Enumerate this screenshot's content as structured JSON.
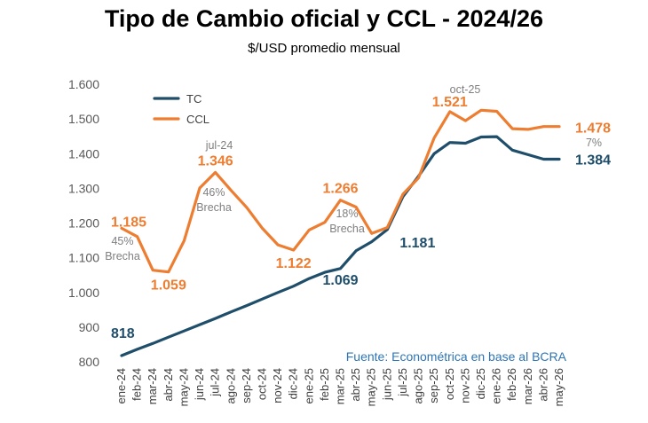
{
  "chart_data": {
    "type": "line",
    "title": "Tipo de Cambio oficial y CCL - 2024/26",
    "subtitle": "$/USD promedio mensual",
    "categories": [
      "ene-24",
      "feb-24",
      "mar-24",
      "abr-24",
      "may-24",
      "jun-24",
      "jul-24",
      "ago-24",
      "sep-24",
      "oct-24",
      "nov-24",
      "dic-24",
      "ene-25",
      "feb-25",
      "mar-25",
      "abr-25",
      "may-25",
      "jun-25",
      "jul-25",
      "ago-25",
      "sep-25",
      "oct-25",
      "nov-25",
      "dic-25",
      "ene-26",
      "feb-26",
      "mar-26",
      "abr-26",
      "may-26"
    ],
    "ylim": [
      800,
      1600
    ],
    "yticks": [
      "800",
      "900",
      "1.000",
      "1.100",
      "1.200",
      "1.300",
      "1.400",
      "1.500",
      "1.600"
    ],
    "grid": false,
    "legend_position": "top-left",
    "series": [
      {
        "name": "TC",
        "color": "#1f4e6b",
        "values": [
          818,
          836,
          853,
          871,
          889,
          907,
          925,
          944,
          962,
          981,
          1000,
          1018,
          1040,
          1058,
          1069,
          1120,
          1146,
          1181,
          1276,
          1335,
          1400,
          1432,
          1430,
          1448,
          1449,
          1410,
          1397,
          1384,
          1384
        ]
      },
      {
        "name": "CCL",
        "color": "#ed7d31",
        "values": [
          1185,
          1161,
          1064,
          1059,
          1149,
          1301,
          1346,
          1294,
          1245,
          1185,
          1137,
          1122,
          1180,
          1202,
          1266,
          1246,
          1170,
          1187,
          1283,
          1330,
          1445,
          1521,
          1495,
          1525,
          1522,
          1472,
          1470,
          1478,
          1478
        ]
      }
    ],
    "labels": [
      {
        "series": "TC",
        "index": 0,
        "text": "818"
      },
      {
        "series": "TC",
        "index": 14,
        "text": "1.069"
      },
      {
        "series": "TC",
        "index": 17,
        "text": "1.181"
      },
      {
        "series": "TC",
        "index": 28,
        "text": "1.384"
      },
      {
        "series": "CCL",
        "index": 0,
        "text": "1.185"
      },
      {
        "series": "CCL",
        "index": 3,
        "text": "1.059"
      },
      {
        "series": "CCL",
        "index": 6,
        "text": "1.346"
      },
      {
        "series": "CCL",
        "index": 11,
        "text": "1.122"
      },
      {
        "series": "CCL",
        "index": 14,
        "text": "1.266"
      },
      {
        "series": "CCL",
        "index": 21,
        "text": "1.521"
      },
      {
        "series": "CCL",
        "index": 28,
        "text": "1.478"
      }
    ],
    "annotations": [
      {
        "lines": [
          "45%",
          "Brecha"
        ]
      },
      {
        "lines": [
          "jul-24"
        ]
      },
      {
        "lines": [
          "46%",
          "Brecha"
        ]
      },
      {
        "lines": [
          "18%",
          "Brecha"
        ]
      },
      {
        "lines": [
          "oct-25"
        ]
      },
      {
        "lines": [
          "7%"
        ]
      }
    ],
    "source": "Fuente: Econométrica en base al BCRA"
  }
}
